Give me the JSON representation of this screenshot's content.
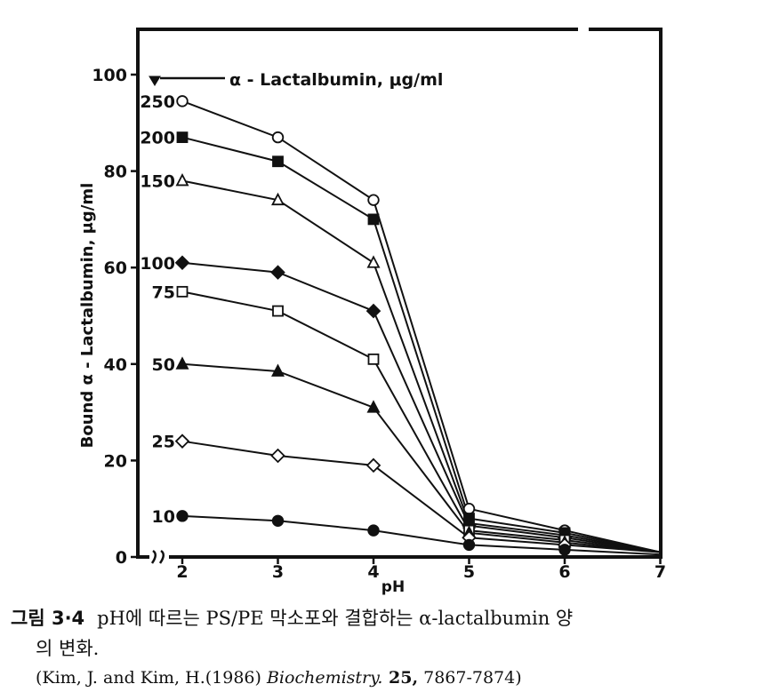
{
  "chart_data": {
    "type": "line",
    "ylabel": "Bound  α - Lactalbumin, μg/ml",
    "xlabel": "pH",
    "xlim": [
      1.55,
      7
    ],
    "ylim": [
      0,
      109
    ],
    "x_ticks": [
      2,
      3,
      4,
      5,
      6,
      7
    ],
    "y_ticks": [
      0,
      20,
      40,
      60,
      80,
      100
    ],
    "x_tick_labels": [
      "2",
      "3",
      "4",
      "5",
      "6",
      "7"
    ],
    "y_tick_labels": [
      "0",
      "20",
      "40",
      "60",
      "80",
      "100"
    ],
    "legend_title": "α - Lactalbumin, μg/ml",
    "legend_placement": "top-left",
    "grid": false,
    "series": [
      {
        "name": "250",
        "marker": "circle-open",
        "x": [
          2,
          3,
          4,
          5,
          6,
          7
        ],
        "y": [
          94.5,
          87,
          74,
          10,
          5.5,
          1
        ]
      },
      {
        "name": "200",
        "marker": "square-filled",
        "x": [
          2,
          3,
          4,
          5,
          6,
          7
        ],
        "y": [
          87,
          82,
          70,
          8,
          5,
          1
        ]
      },
      {
        "name": "150",
        "marker": "triangle-open",
        "x": [
          2,
          3,
          4,
          5,
          6,
          7
        ],
        "y": [
          78,
          74,
          61,
          7,
          4.5,
          1
        ]
      },
      {
        "name": "100",
        "marker": "diamond-filled",
        "x": [
          2,
          3,
          4,
          5,
          6,
          7
        ],
        "y": [
          61,
          59,
          51,
          6.5,
          4,
          1
        ]
      },
      {
        "name": "75",
        "marker": "square-open",
        "x": [
          2,
          3,
          4,
          5,
          6,
          7
        ],
        "y": [
          55,
          51,
          41,
          5.5,
          3.5,
          1
        ]
      },
      {
        "name": "50",
        "marker": "triangle-filled",
        "x": [
          2,
          3,
          4,
          5,
          6,
          7
        ],
        "y": [
          40,
          38.5,
          31,
          5,
          3,
          1
        ]
      },
      {
        "name": "25",
        "marker": "diamond-open",
        "x": [
          2,
          3,
          4,
          5,
          6,
          7
        ],
        "y": [
          24,
          21,
          19,
          4,
          2.5,
          1
        ]
      },
      {
        "name": "10",
        "marker": "circle-filled",
        "x": [
          2,
          3,
          4,
          5,
          6,
          7
        ],
        "y": [
          8.5,
          7.5,
          5.5,
          2.5,
          1.5,
          0.5
        ]
      }
    ]
  },
  "caption": {
    "figure_number": "그림 3·4",
    "text": "pH에 따르는 PS/PE 막소포와 결합하는 α-lactalbumin 양",
    "text_line2": "의 변화.",
    "citation_prefix": "(Kim, J. and Kim, H.(1986) ",
    "citation_journal": "Biochemistry.",
    "citation_volume": " 25,",
    "citation_pages": " 7867-7874)"
  }
}
